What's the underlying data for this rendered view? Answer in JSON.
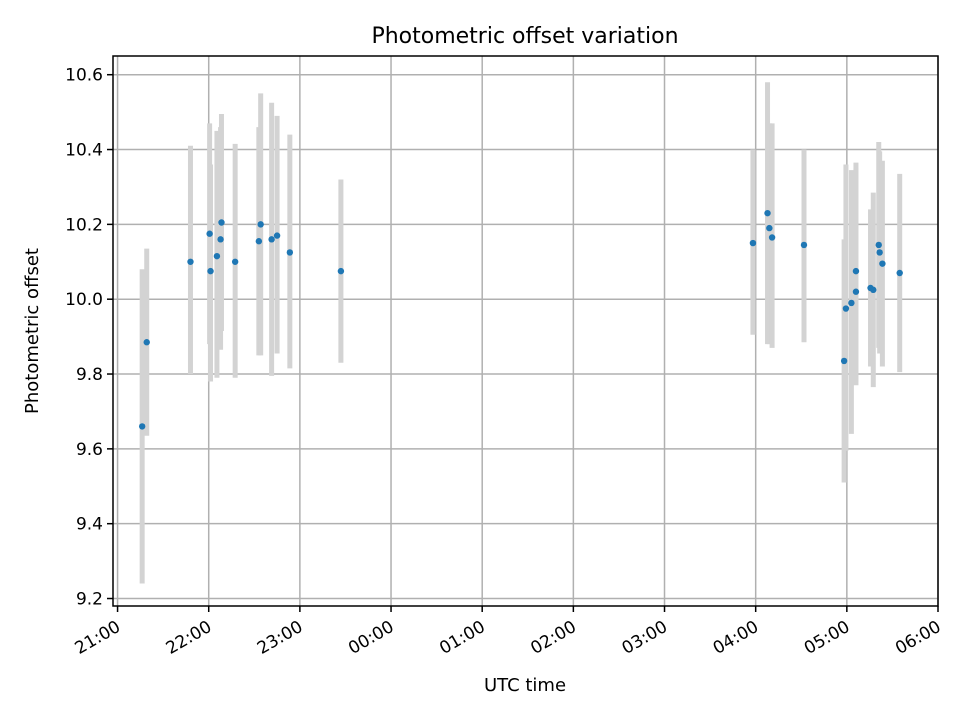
{
  "chart_data": {
    "type": "scatter",
    "title": "Photometric offset variation",
    "xlabel": "UTC time",
    "ylabel": "Photometric offset",
    "x_unit": "hours (UTC, continuing past midnight)",
    "xlim": [
      20.95,
      30.0
    ],
    "ylim": [
      9.18,
      10.65
    ],
    "grid": true,
    "x_ticks": [
      {
        "value": 21,
        "label": "21:00"
      },
      {
        "value": 22,
        "label": "22:00"
      },
      {
        "value": 23,
        "label": "23:00"
      },
      {
        "value": 24,
        "label": "00:00"
      },
      {
        "value": 25,
        "label": "01:00"
      },
      {
        "value": 26,
        "label": "02:00"
      },
      {
        "value": 27,
        "label": "03:00"
      },
      {
        "value": 28,
        "label": "04:00"
      },
      {
        "value": 29,
        "label": "05:00"
      },
      {
        "value": 30,
        "label": "06:00"
      }
    ],
    "y_ticks": [
      {
        "value": 9.2,
        "label": "9.2"
      },
      {
        "value": 9.4,
        "label": "9.4"
      },
      {
        "value": 9.6,
        "label": "9.6"
      },
      {
        "value": 9.8,
        "label": "9.8"
      },
      {
        "value": 10.0,
        "label": "10.0"
      },
      {
        "value": 10.2,
        "label": "10.2"
      },
      {
        "value": 10.4,
        "label": "10.4"
      },
      {
        "value": 10.6,
        "label": "10.6"
      }
    ],
    "point_color": "#1f77b4",
    "errorbar_color": "#d3d3d3",
    "points": [
      {
        "x": 21.27,
        "y": 9.66,
        "ylo": 9.24,
        "yhi": 10.08
      },
      {
        "x": 21.32,
        "y": 9.885,
        "ylo": 9.635,
        "yhi": 10.135
      },
      {
        "x": 21.8,
        "y": 10.1,
        "ylo": 9.8,
        "yhi": 10.41
      },
      {
        "x": 22.01,
        "y": 10.175,
        "ylo": 9.88,
        "yhi": 10.47
      },
      {
        "x": 22.02,
        "y": 10.075,
        "ylo": 9.78,
        "yhi": 10.36
      },
      {
        "x": 22.09,
        "y": 10.115,
        "ylo": 9.79,
        "yhi": 10.45
      },
      {
        "x": 22.13,
        "y": 10.16,
        "ylo": 9.865,
        "yhi": 10.46
      },
      {
        "x": 22.14,
        "y": 10.205,
        "ylo": 9.915,
        "yhi": 10.495
      },
      {
        "x": 22.29,
        "y": 10.1,
        "ylo": 9.79,
        "yhi": 10.415
      },
      {
        "x": 22.55,
        "y": 10.155,
        "ylo": 9.85,
        "yhi": 10.46
      },
      {
        "x": 22.57,
        "y": 10.2,
        "ylo": 9.85,
        "yhi": 10.55
      },
      {
        "x": 22.69,
        "y": 10.16,
        "ylo": 9.795,
        "yhi": 10.525
      },
      {
        "x": 22.75,
        "y": 10.17,
        "ylo": 9.855,
        "yhi": 10.49
      },
      {
        "x": 22.89,
        "y": 10.125,
        "ylo": 9.815,
        "yhi": 10.44
      },
      {
        "x": 23.45,
        "y": 10.075,
        "ylo": 9.83,
        "yhi": 10.32
      },
      {
        "x": 27.97,
        "y": 10.15,
        "ylo": 9.905,
        "yhi": 10.4
      },
      {
        "x": 28.13,
        "y": 10.23,
        "ylo": 9.88,
        "yhi": 10.58
      },
      {
        "x": 28.15,
        "y": 10.19,
        "ylo": 9.88,
        "yhi": 10.47
      },
      {
        "x": 28.18,
        "y": 10.165,
        "ylo": 9.87,
        "yhi": 10.47
      },
      {
        "x": 28.53,
        "y": 10.145,
        "ylo": 9.885,
        "yhi": 10.4
      },
      {
        "x": 28.97,
        "y": 9.835,
        "ylo": 9.51,
        "yhi": 10.16
      },
      {
        "x": 28.99,
        "y": 9.975,
        "ylo": 9.595,
        "yhi": 10.36
      },
      {
        "x": 29.05,
        "y": 9.99,
        "ylo": 9.64,
        "yhi": 10.345
      },
      {
        "x": 29.1,
        "y": 10.075,
        "ylo": 9.78,
        "yhi": 10.365
      },
      {
        "x": 29.1,
        "y": 10.02,
        "ylo": 9.77,
        "yhi": 10.35
      },
      {
        "x": 29.26,
        "y": 10.03,
        "ylo": 9.82,
        "yhi": 10.24
      },
      {
        "x": 29.29,
        "y": 10.025,
        "ylo": 9.765,
        "yhi": 10.285
      },
      {
        "x": 29.35,
        "y": 10.145,
        "ylo": 9.87,
        "yhi": 10.42
      },
      {
        "x": 29.36,
        "y": 10.125,
        "ylo": 9.855,
        "yhi": 10.395
      },
      {
        "x": 29.39,
        "y": 10.095,
        "ylo": 9.82,
        "yhi": 10.37
      },
      {
        "x": 29.58,
        "y": 10.07,
        "ylo": 9.805,
        "yhi": 10.335
      }
    ]
  }
}
